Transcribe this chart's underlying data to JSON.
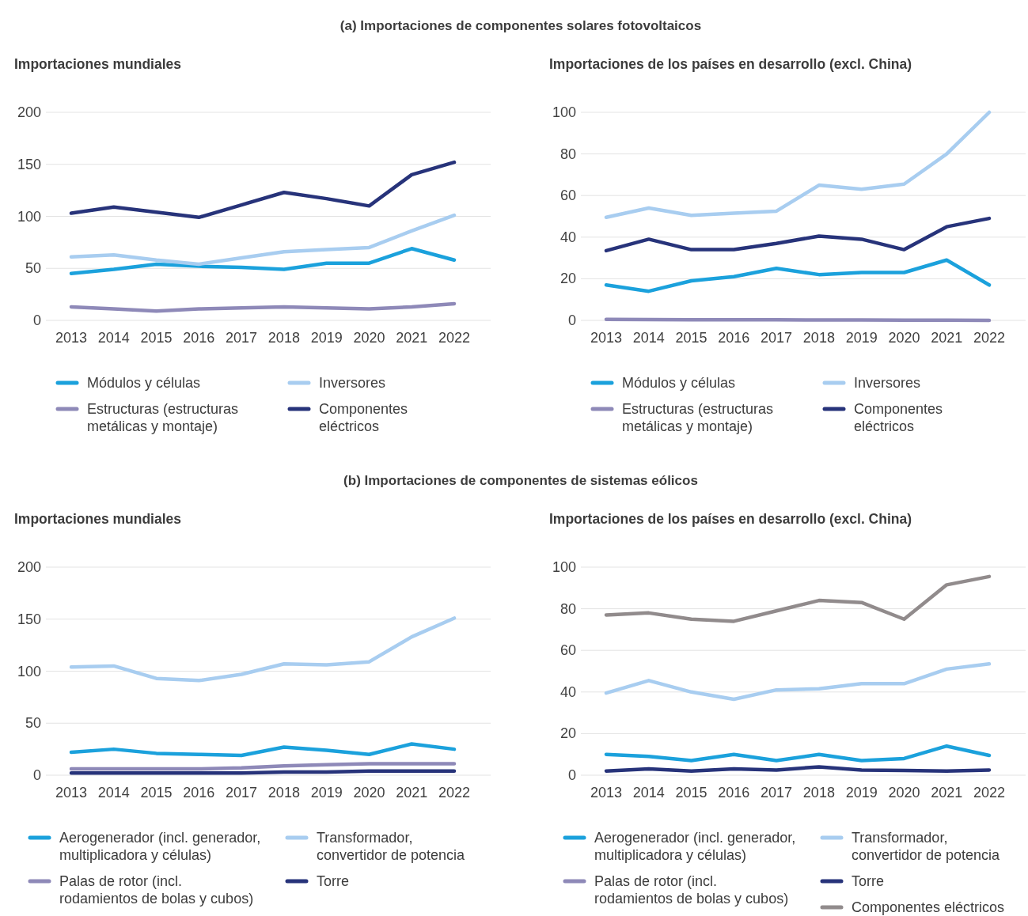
{
  "chart_data": [
    {
      "type": "line",
      "title": "Importaciones mundiales",
      "annotations": [
        "(a) Importaciones de componentes solares fotovoltaicos"
      ],
      "categories": [
        "2013",
        "2014",
        "2015",
        "2016",
        "2017",
        "2018",
        "2019",
        "2020",
        "2021",
        "2022"
      ],
      "ylim": [
        0,
        200
      ],
      "yticks": [
        0,
        50,
        100,
        150,
        200
      ],
      "grid": "y",
      "legend": "bottom",
      "series": [
        {
          "name": "Módulos y células",
          "color": "#1ba1dc",
          "values": [
            45,
            49,
            54,
            52,
            51,
            49,
            55,
            55,
            69,
            58
          ]
        },
        {
          "name": "Inversores",
          "color": "#a8cdf0",
          "values": [
            61,
            63,
            58,
            54,
            60,
            66,
            68,
            70,
            86,
            101
          ]
        },
        {
          "name": "Estructuras (estructuras metálicas y montaje)",
          "color": "#8e89b8",
          "values": [
            13,
            11,
            9,
            11,
            12,
            13,
            12,
            11,
            13,
            16
          ]
        },
        {
          "name": "Componentes eléctricos",
          "color": "#27337a",
          "values": [
            103,
            109,
            104,
            99,
            111,
            123,
            117,
            110,
            140,
            152
          ]
        }
      ]
    },
    {
      "type": "line",
      "title": "Importaciones de los países en desarrollo (excl. China)",
      "categories": [
        "2013",
        "2014",
        "2015",
        "2016",
        "2017",
        "2018",
        "2019",
        "2020",
        "2021",
        "2022"
      ],
      "ylim": [
        0,
        100
      ],
      "yticks": [
        0,
        20,
        40,
        60,
        80,
        100
      ],
      "grid": "y",
      "legend": "bottom",
      "series": [
        {
          "name": "Módulos y células",
          "color": "#1ba1dc",
          "values": [
            17,
            14,
            19,
            21,
            25,
            22,
            23,
            23,
            29,
            17
          ]
        },
        {
          "name": "Inversores",
          "color": "#a8cdf0",
          "values": [
            49.5,
            54,
            50.5,
            51.5,
            52.5,
            65,
            63,
            65.5,
            80,
            100
          ]
        },
        {
          "name": "Estructuras (estructuras metálicas y montaje)",
          "color": "#8e89b8",
          "values": [
            0.5,
            0.4,
            0.3,
            0.3,
            0.3,
            0.2,
            0.2,
            0.1,
            0.1,
            0
          ]
        },
        {
          "name": "Componentes eléctricos",
          "color": "#27337a",
          "values": [
            33.5,
            39,
            34,
            34,
            37,
            40.5,
            39,
            34,
            45,
            49
          ]
        }
      ]
    },
    {
      "type": "line",
      "title": "Importaciones mundiales",
      "annotations": [
        "(b) Importaciones de componentes de sistemas eólicos"
      ],
      "categories": [
        "2013",
        "2014",
        "2015",
        "2016",
        "2017",
        "2018",
        "2019",
        "2020",
        "2021",
        "2022"
      ],
      "ylim": [
        0,
        200
      ],
      "yticks": [
        0,
        50,
        100,
        150,
        200
      ],
      "grid": "y",
      "legend": "bottom",
      "series": [
        {
          "name": "Aerogenerador (incl. generador, multiplicadora y células)",
          "color": "#1ba1dc",
          "values": [
            22,
            25,
            21,
            20,
            19,
            27,
            24,
            20,
            30,
            25
          ]
        },
        {
          "name": "Transformador, convertidor de potencia",
          "color": "#a8cdf0",
          "values": [
            104,
            105,
            93,
            91,
            97,
            107,
            106,
            109,
            133,
            151
          ]
        },
        {
          "name": "Palas de rotor (incl. rodamientos de bolas y cubos)",
          "color": "#8e89b8",
          "values": [
            6,
            6,
            6,
            6,
            7,
            9,
            10,
            11,
            11,
            11
          ]
        },
        {
          "name": "Torre",
          "color": "#27337a",
          "values": [
            2,
            2,
            2,
            2,
            2,
            3,
            3,
            4,
            4,
            4
          ]
        }
      ]
    },
    {
      "type": "line",
      "title": "Importaciones de los países en desarrollo (excl. China)",
      "categories": [
        "2013",
        "2014",
        "2015",
        "2016",
        "2017",
        "2018",
        "2019",
        "2020",
        "2021",
        "2022"
      ],
      "ylim": [
        0,
        100
      ],
      "yticks": [
        0,
        20,
        40,
        60,
        80,
        100
      ],
      "grid": "y",
      "legend": "bottom",
      "series": [
        {
          "name": "Aerogenerador (incl. generador, multiplicadora y células)",
          "color": "#1ba1dc",
          "values": [
            10,
            9,
            7,
            10,
            7,
            10,
            7,
            8,
            14,
            9.5
          ]
        },
        {
          "name": "Transformador, convertidor de potencia",
          "color": "#a8cdf0",
          "values": [
            39.5,
            45.5,
            40,
            36.5,
            41,
            41.5,
            44,
            44,
            51,
            53.5
          ]
        },
        {
          "name": "Palas de rotor (incl. rodamientos de bolas y cubos)",
          "color": "#8e89b8",
          "values": [
            null,
            null,
            null,
            null,
            null,
            null,
            null,
            null,
            null,
            null
          ]
        },
        {
          "name": "Torre",
          "color": "#27337a",
          "values": [
            2,
            3,
            2,
            3,
            2.5,
            4,
            2.5,
            2.3,
            2,
            2.5
          ]
        },
        {
          "name": "Componentes eléctricos",
          "color": "#918b8c",
          "values": [
            77,
            78,
            75,
            74,
            79,
            84,
            83,
            75,
            91.5,
            95.5
          ]
        }
      ]
    }
  ]
}
